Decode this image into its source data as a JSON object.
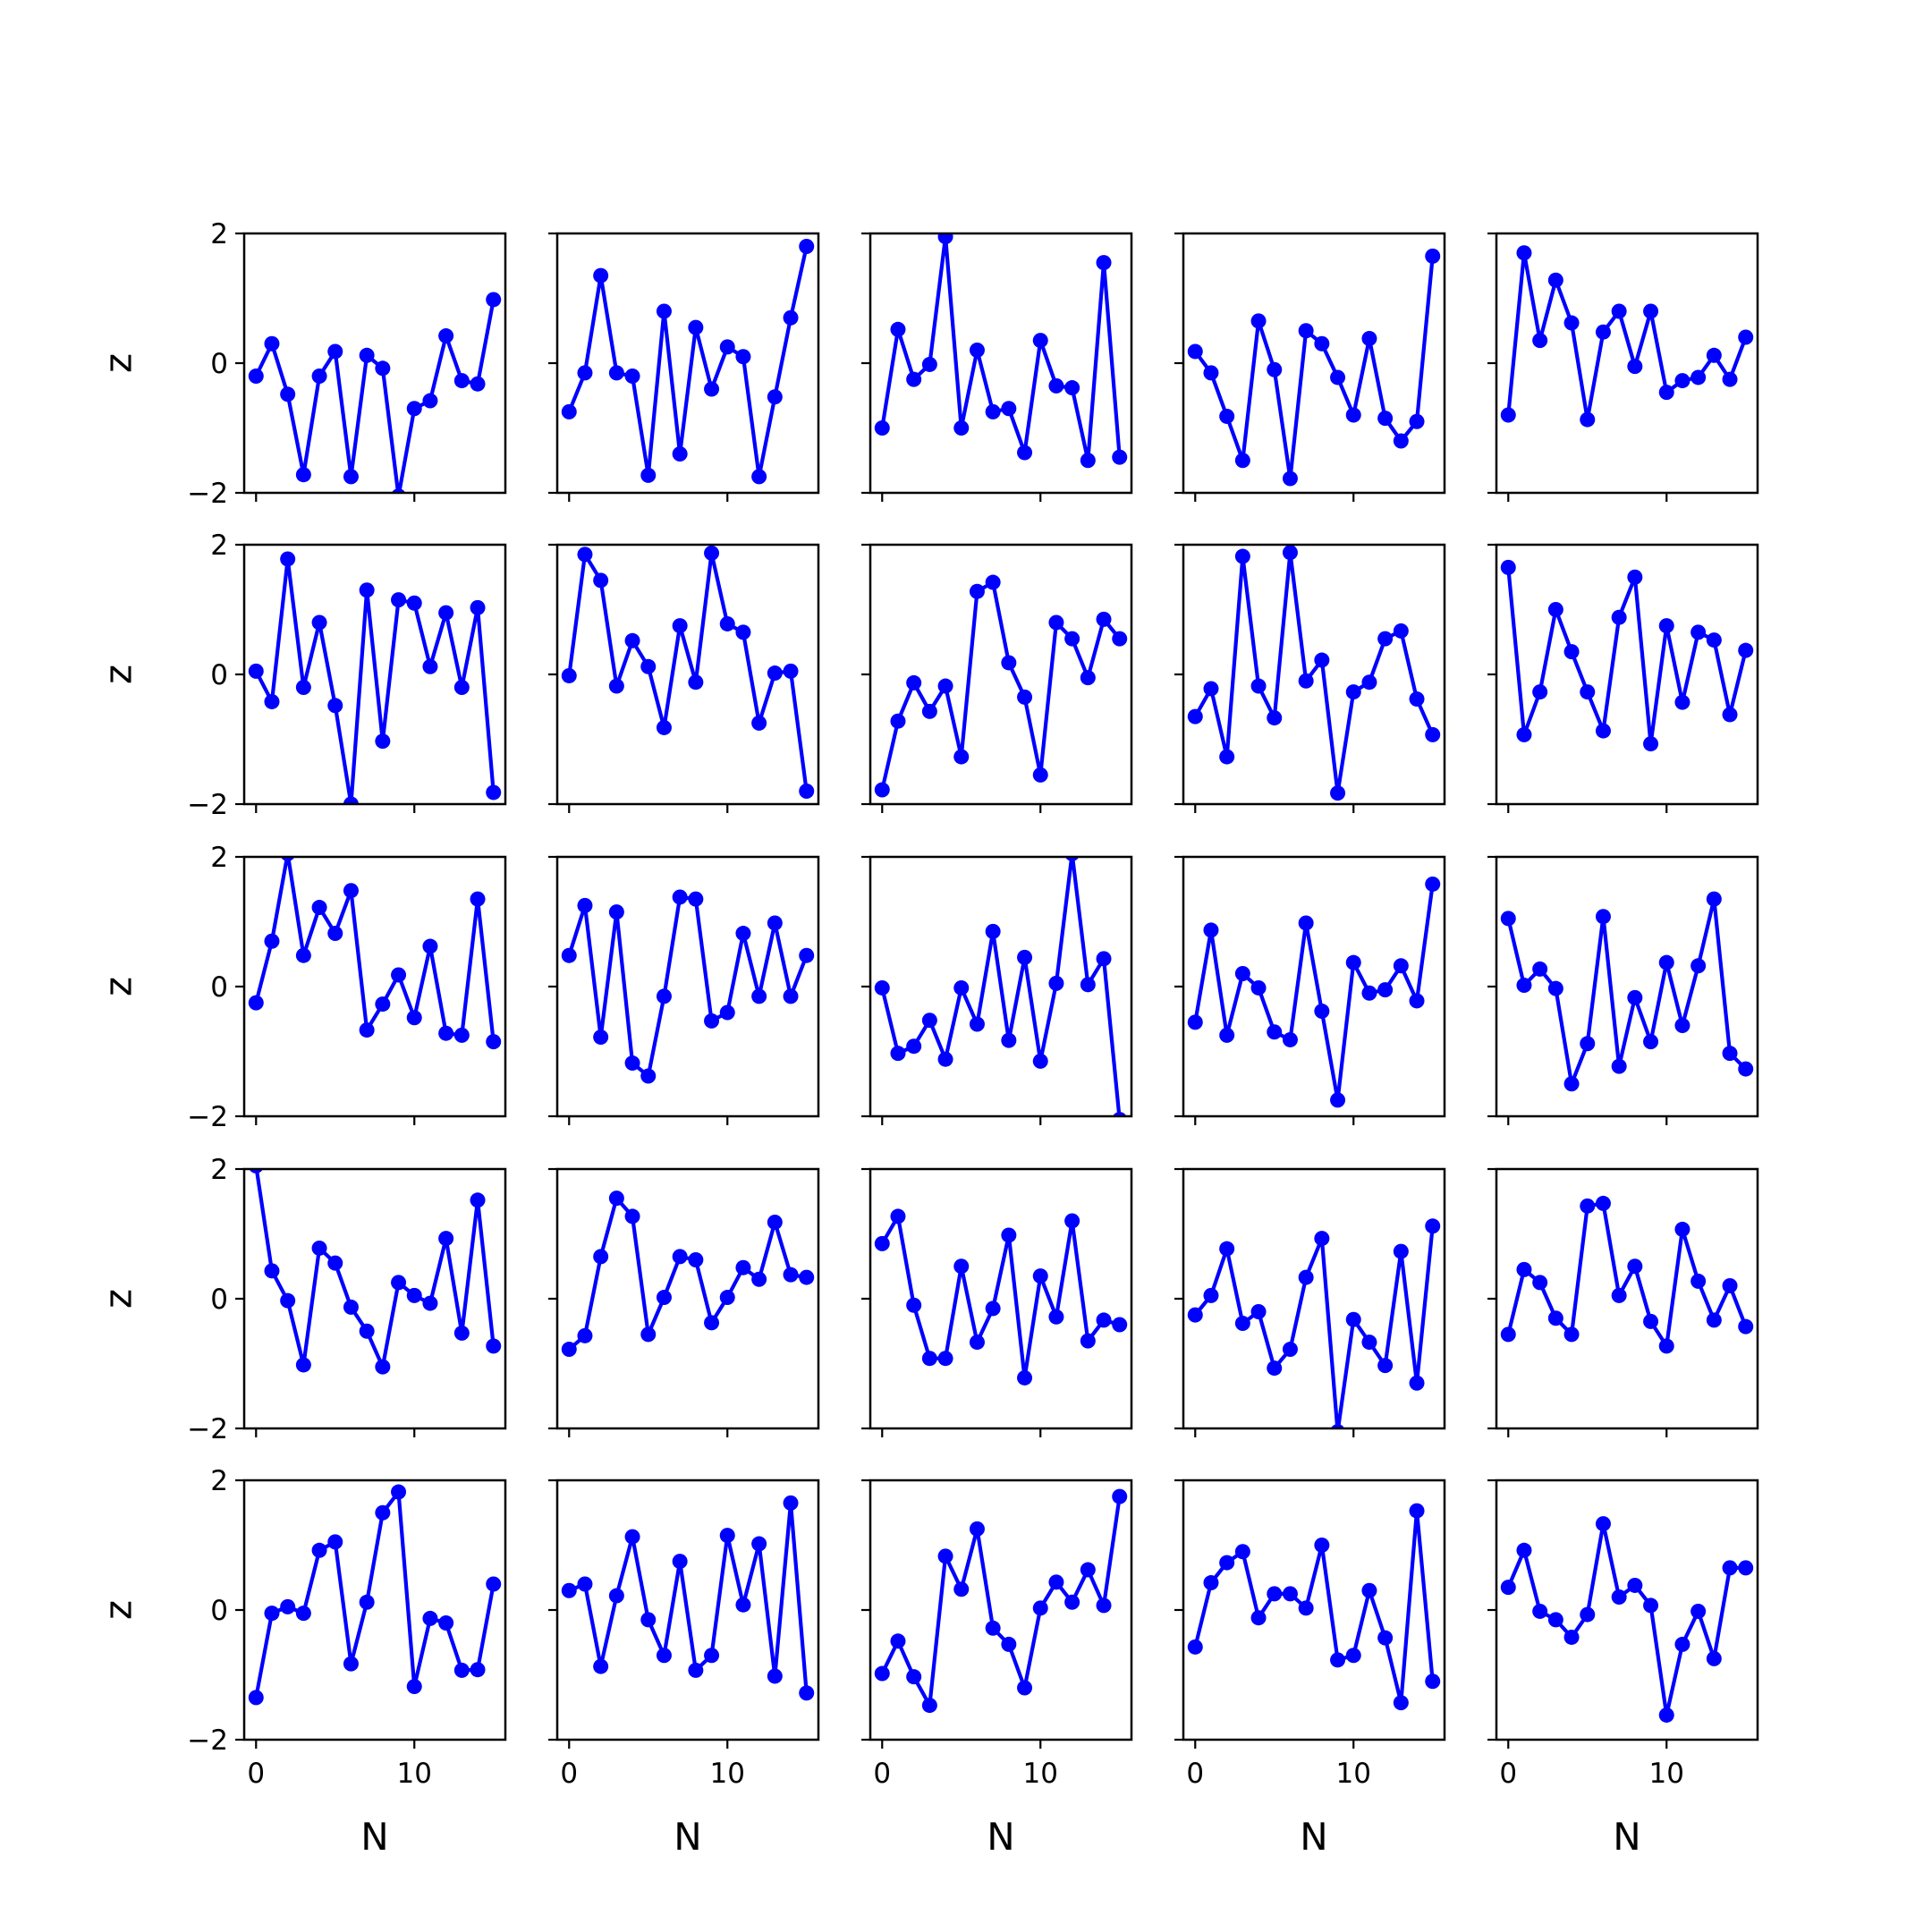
{
  "figure": {
    "rows": 5,
    "cols": 5,
    "line_color": "#0000ff",
    "marker": "circle",
    "sharex": true,
    "sharey": true
  },
  "chart_data": {
    "type": "line",
    "xlabel": "N",
    "ylabel": "z",
    "xlim": [
      -0.75,
      15.75
    ],
    "ylim": [
      -2,
      2
    ],
    "xticks": [
      0,
      10
    ],
    "yticks": [
      -2,
      0,
      2
    ],
    "x": [
      0,
      1,
      2,
      3,
      4,
      5,
      6,
      7,
      8,
      9,
      10,
      11,
      12,
      13,
      14,
      15
    ],
    "panels": [
      [
        -0.2,
        0.3,
        -0.48,
        -1.72,
        -0.2,
        0.18,
        -1.75,
        0.12,
        -0.08,
        -2.05,
        -0.7,
        -0.58,
        0.42,
        -0.27,
        -0.32,
        0.98
      ],
      [
        -0.75,
        -0.15,
        1.35,
        -0.15,
        -0.2,
        -1.73,
        0.8,
        -1.4,
        0.55,
        -0.4,
        0.25,
        0.1,
        -1.75,
        -0.52,
        0.7,
        1.8
      ],
      [
        -1.0,
        0.52,
        -0.25,
        -0.02,
        1.95,
        -1.0,
        0.2,
        -0.75,
        -0.7,
        -1.38,
        0.35,
        -0.35,
        -0.38,
        -1.5,
        1.55,
        -1.45
      ],
      [
        0.18,
        -0.15,
        -0.82,
        -1.5,
        0.65,
        -0.1,
        -1.78,
        0.5,
        0.3,
        -0.22,
        -0.8,
        0.38,
        -0.85,
        -1.2,
        -0.9,
        1.65
      ],
      [
        -0.8,
        1.7,
        0.35,
        1.28,
        0.62,
        -0.87,
        0.48,
        0.8,
        -0.05,
        0.8,
        -0.45,
        -0.27,
        -0.22,
        0.12,
        -0.25,
        0.4
      ],
      [
        0.05,
        -0.42,
        1.78,
        -0.2,
        0.8,
        -0.48,
        -2.0,
        1.3,
        -1.03,
        1.15,
        1.1,
        0.12,
        0.95,
        -0.2,
        1.03,
        -1.82
      ],
      [
        -0.02,
        1.85,
        1.45,
        -0.18,
        0.52,
        0.12,
        -0.82,
        0.75,
        -0.12,
        1.87,
        0.78,
        0.65,
        -0.75,
        0.02,
        0.05,
        -1.8
      ],
      [
        -1.78,
        -0.72,
        -0.13,
        -0.57,
        -0.18,
        -1.27,
        1.28,
        1.42,
        0.18,
        -0.35,
        -1.55,
        0.8,
        0.55,
        -0.05,
        0.85,
        0.55
      ],
      [
        -0.65,
        -0.22,
        -1.27,
        1.82,
        -0.18,
        -0.67,
        1.88,
        -0.1,
        0.22,
        -1.83,
        -0.27,
        -0.12,
        0.55,
        0.67,
        -0.38,
        -0.93
      ],
      [
        1.65,
        -0.93,
        -0.27,
        1.0,
        0.35,
        -0.27,
        -0.87,
        0.88,
        1.5,
        -1.07,
        0.75,
        -0.43,
        0.65,
        0.53,
        -0.62,
        0.37
      ]
    ],
    "panels_rows_3_to_5": [
      [
        -0.25,
        0.7,
        2.05,
        0.48,
        1.22,
        0.82,
        1.48,
        -0.67,
        -0.27,
        0.18,
        -0.48,
        0.62,
        -0.72,
        -0.75,
        1.35,
        -0.85
      ],
      [
        0.48,
        1.25,
        -0.78,
        1.15,
        -1.18,
        -1.38,
        -0.15,
        1.38,
        1.35,
        -0.53,
        -0.4,
        0.82,
        -0.15,
        0.98,
        -0.15,
        0.48
      ],
      [
        -0.02,
        -1.03,
        -0.92,
        -0.52,
        -1.12,
        -0.02,
        -0.58,
        0.85,
        -0.83,
        0.45,
        -1.15,
        0.05,
        2.05,
        0.03,
        0.43,
        -2.05
      ],
      [
        -0.55,
        0.87,
        -0.75,
        0.2,
        -0.02,
        -0.7,
        -0.82,
        0.98,
        -0.38,
        -1.75,
        0.37,
        -0.1,
        -0.05,
        0.32,
        -0.22,
        1.58
      ],
      [
        1.05,
        0.02,
        0.27,
        -0.03,
        -1.5,
        -0.88,
        1.08,
        -1.23,
        -0.17,
        -0.85,
        0.37,
        -0.6,
        0.32,
        1.35,
        -1.03,
        -1.27
      ],
      [
        2.05,
        0.43,
        -0.03,
        -1.02,
        0.78,
        0.55,
        -0.13,
        -0.5,
        -1.05,
        0.25,
        0.05,
        -0.07,
        0.93,
        -0.53,
        1.52,
        -0.73
      ],
      [
        -0.78,
        -0.57,
        0.65,
        1.55,
        1.27,
        -0.55,
        0.02,
        0.65,
        0.6,
        -0.37,
        0.02,
        0.48,
        0.3,
        1.18,
        0.37,
        0.33
      ],
      [
        0.85,
        1.27,
        -0.1,
        -0.92,
        -0.92,
        0.5,
        -0.67,
        -0.15,
        0.98,
        -1.22,
        0.35,
        -0.28,
        1.2,
        -0.65,
        -0.33,
        -0.4
      ],
      [
        -0.25,
        0.05,
        0.77,
        -0.38,
        -0.2,
        -1.07,
        -0.78,
        0.33,
        0.93,
        -2.05,
        -0.32,
        -0.67,
        -1.03,
        0.73,
        -1.3,
        1.12
      ],
      [
        -0.55,
        0.45,
        0.25,
        -0.3,
        -0.55,
        1.43,
        1.47,
        0.05,
        0.5,
        -0.35,
        -0.73,
        1.07,
        0.27,
        -0.33,
        0.2,
        -0.43
      ],
      [
        -1.35,
        -0.05,
        0.05,
        -0.05,
        0.92,
        1.05,
        -0.83,
        0.12,
        1.5,
        1.82,
        -1.18,
        -0.13,
        -0.2,
        -0.93,
        -0.92,
        0.4
      ],
      [
        0.3,
        0.4,
        -0.87,
        0.22,
        1.13,
        -0.15,
        -0.7,
        0.75,
        -0.93,
        -0.7,
        1.15,
        0.08,
        1.02,
        -1.02,
        1.65,
        -1.28
      ],
      [
        -0.98,
        -0.48,
        -1.03,
        -1.47,
        0.83,
        0.32,
        1.25,
        -0.28,
        -0.53,
        -1.2,
        0.03,
        0.43,
        0.12,
        0.62,
        0.07,
        1.75
      ],
      [
        -0.57,
        0.42,
        0.73,
        0.9,
        -0.12,
        0.25,
        0.25,
        0.03,
        1.0,
        -0.77,
        -0.7,
        0.3,
        -0.43,
        -1.43,
        1.53,
        -1.1
      ],
      [
        0.35,
        0.92,
        -0.02,
        -0.15,
        -0.42,
        -0.07,
        1.33,
        0.2,
        0.38,
        0.07,
        -1.62,
        -0.53,
        -0.02,
        -0.75,
        0.65,
        0.65
      ]
    ]
  }
}
